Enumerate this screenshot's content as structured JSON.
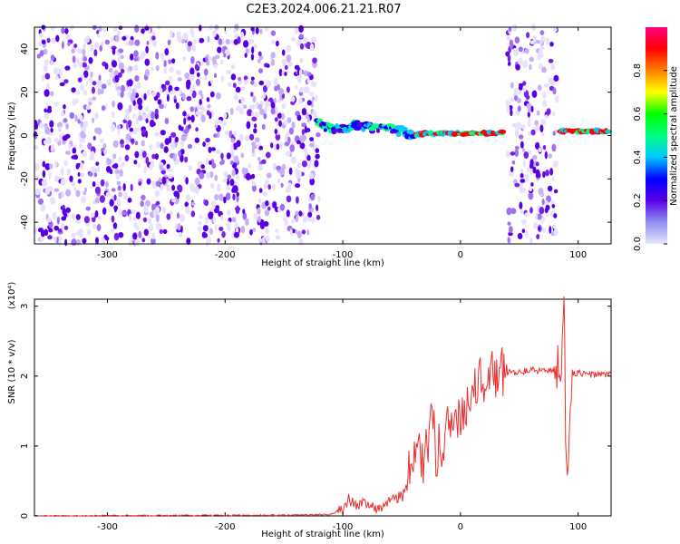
{
  "figure": {
    "title": "C2E3.2024.006.21.21.R07"
  },
  "chart_data": [
    {
      "type": "heatmap",
      "xlabel": "Height of straight line (km)",
      "ylabel": "Frequency (Hz)",
      "xlim": [
        -362,
        128
      ],
      "ylim": [
        -50,
        50
      ],
      "xticks": [
        -300,
        -200,
        -100,
        0,
        100
      ],
      "yticks": [
        -40,
        -20,
        0,
        20,
        40
      ],
      "colorbar": {
        "label": "Normalized spectral amplitude",
        "range": [
          0.0,
          1.0
        ],
        "ticks": [
          "0.0",
          "0.2",
          "0.4",
          "0.6",
          "0.8"
        ],
        "colors": [
          "#e6e6ff",
          "#9090f0",
          "#5a00e6",
          "#0000ff",
          "#00c8ff",
          "#00ff80",
          "#00ff00",
          "#ffff00",
          "#ff8000",
          "#ff0000",
          "#ff0080"
        ]
      },
      "noise_bands": [
        {
          "x_range": [
            -362,
            -120
          ],
          "f_range": [
            -50,
            50
          ]
        },
        {
          "x_range": [
            40,
            82
          ],
          "f_range": [
            -50,
            50
          ]
        }
      ],
      "signal_track": [
        [
          -122,
          6
        ],
        [
          -110,
          3
        ],
        [
          -100,
          3
        ],
        [
          -90,
          5
        ],
        [
          -80,
          4
        ],
        [
          -70,
          3
        ],
        [
          -60,
          3
        ],
        [
          -50,
          2
        ],
        [
          -40,
          0
        ],
        [
          -30,
          1
        ],
        [
          -20,
          1
        ],
        [
          -10,
          1
        ],
        [
          0,
          1
        ],
        [
          10,
          1
        ],
        [
          20,
          1
        ],
        [
          30,
          1
        ],
        [
          38,
          2
        ],
        [
          85,
          2
        ],
        [
          100,
          2
        ],
        [
          115,
          2
        ],
        [
          128,
          2
        ]
      ],
      "grid": false,
      "legend": "none"
    },
    {
      "type": "line",
      "xlabel": "Height of straight line (km)",
      "ylabel": "SNR (10 * v/v)",
      "y_multiplier": "(x10⁴)",
      "xlim": [
        -362,
        128
      ],
      "ylim": [
        0,
        3.1
      ],
      "xticks": [
        -300,
        -200,
        -100,
        0,
        100
      ],
      "yticks": [
        0,
        1,
        2,
        3
      ],
      "series": [
        {
          "color": "#e83030",
          "points": [
            [
              -362,
              0.0
            ],
            [
              -150,
              0.01
            ],
            [
              -110,
              0.02
            ],
            [
              -100,
              0.1
            ],
            [
              -95,
              0.25
            ],
            [
              -90,
              0.15
            ],
            [
              -80,
              0.2
            ],
            [
              -70,
              0.1
            ],
            [
              -60,
              0.2
            ],
            [
              -50,
              0.3
            ],
            [
              -40,
              0.6
            ],
            [
              -35,
              1.0
            ],
            [
              -30,
              0.7
            ],
            [
              -25,
              1.3
            ],
            [
              -20,
              0.9
            ],
            [
              -15,
              1.2
            ],
            [
              -10,
              1.3
            ],
            [
              0,
              1.4
            ],
            [
              5,
              1.6
            ],
            [
              10,
              1.9
            ],
            [
              20,
              1.95
            ],
            [
              30,
              2.0
            ],
            [
              40,
              2.05
            ],
            [
              60,
              2.08
            ],
            [
              75,
              2.08
            ],
            [
              85,
              2.1
            ],
            [
              88,
              3.0
            ],
            [
              90,
              0.6
            ],
            [
              95,
              2.05
            ],
            [
              110,
              2.02
            ],
            [
              128,
              2.02
            ]
          ]
        }
      ],
      "grid": false,
      "legend": "none"
    }
  ]
}
